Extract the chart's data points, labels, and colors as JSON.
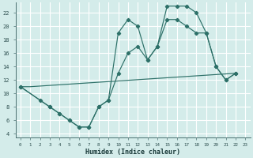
{
  "xlabel": "Humidex (Indice chaleur)",
  "bg_color": "#d4ecea",
  "grid_color": "#ffffff",
  "line_color": "#2d7068",
  "xlim": [
    -0.5,
    23.5
  ],
  "ylim": [
    3.5,
    23.5
  ],
  "xticks": [
    0,
    1,
    2,
    3,
    4,
    5,
    6,
    7,
    8,
    9,
    10,
    11,
    12,
    13,
    14,
    15,
    16,
    17,
    18,
    19,
    20,
    21,
    22,
    23
  ],
  "yticks": [
    4,
    6,
    8,
    10,
    12,
    14,
    16,
    18,
    20,
    22
  ],
  "line1_x": [
    0,
    1,
    22
  ],
  "line1_y": [
    11,
    11,
    13
  ],
  "line2_x": [
    0,
    2,
    3,
    4,
    5,
    6,
    7,
    8,
    9,
    10,
    11,
    12,
    13,
    14,
    15,
    16,
    17,
    18,
    19,
    20,
    21,
    22
  ],
  "line2_y": [
    11,
    9,
    8,
    7,
    6,
    5,
    5,
    8,
    9,
    13,
    16,
    17,
    15,
    17,
    21,
    21,
    20,
    19,
    19,
    14,
    12,
    13
  ],
  "line3_x": [
    0,
    3,
    4,
    5,
    6,
    7,
    8,
    9,
    10,
    11,
    12,
    13,
    14,
    15,
    16,
    17,
    18,
    19,
    20,
    21,
    22
  ],
  "line3_y": [
    11,
    8,
    7,
    6,
    5,
    5,
    8,
    9,
    19,
    21,
    20,
    15,
    17,
    23,
    23,
    23,
    22,
    19,
    14,
    12,
    13
  ]
}
